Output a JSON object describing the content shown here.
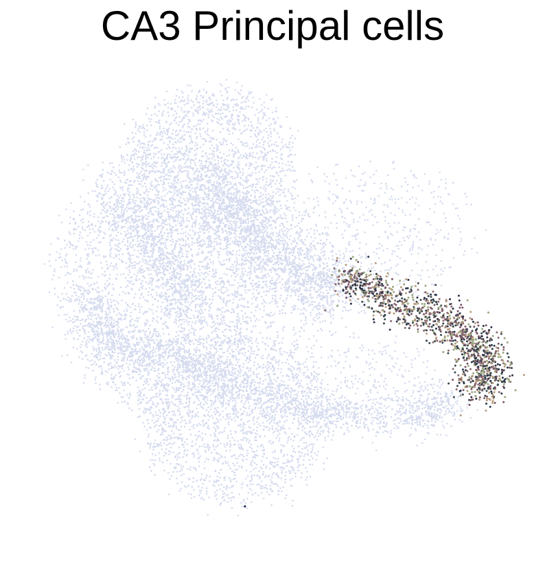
{
  "chart_data": {
    "type": "scatter",
    "title": "CA3 Principal cells",
    "xlabel": "",
    "ylabel": "",
    "axes_visible": false,
    "grid": false,
    "legend": "none",
    "xlim": [
      0,
      1
    ],
    "ylim": [
      0,
      1
    ],
    "background_color": "#d6dcef",
    "highlight_colors": [
      "#2b3447",
      "#3a4a4f",
      "#7a5566",
      "#8b6a70",
      "#9aa77e",
      "#b59b7c",
      "#1f2f55"
    ],
    "background_structure": [
      {
        "name": "cloud-left",
        "cx": 0.27,
        "cy": 0.56,
        "rx": 0.21,
        "ry": 0.27,
        "angle": 0,
        "count": 2600
      },
      {
        "name": "cloud-top",
        "cx": 0.37,
        "cy": 0.8,
        "rx": 0.17,
        "ry": 0.16,
        "angle": 0,
        "count": 1700
      },
      {
        "name": "cloud-bottom",
        "cx": 0.42,
        "cy": 0.27,
        "rx": 0.19,
        "ry": 0.17,
        "angle": 0,
        "count": 1900
      },
      {
        "name": "cloud-center",
        "cx": 0.45,
        "cy": 0.52,
        "rx": 0.18,
        "ry": 0.22,
        "angle": 0,
        "count": 900
      },
      {
        "name": "cloud-right-upper",
        "cx": 0.7,
        "cy": 0.66,
        "rx": 0.2,
        "ry": 0.14,
        "angle": 0,
        "count": 500
      },
      {
        "name": "cloud-right-lower",
        "cx": 0.7,
        "cy": 0.33,
        "rx": 0.14,
        "ry": 0.1,
        "angle": 0,
        "count": 350
      },
      {
        "name": "band-upper-arc",
        "path": [
          [
            0.37,
            0.76
          ],
          [
            0.44,
            0.69
          ],
          [
            0.5,
            0.61
          ],
          [
            0.57,
            0.56
          ],
          [
            0.64,
            0.54
          ]
        ],
        "width": 0.035,
        "count": 1500
      },
      {
        "name": "band-lower-arc",
        "path": [
          [
            0.3,
            0.41
          ],
          [
            0.4,
            0.34
          ],
          [
            0.52,
            0.3
          ],
          [
            0.64,
            0.28
          ],
          [
            0.8,
            0.28
          ],
          [
            0.87,
            0.31
          ]
        ],
        "width": 0.02,
        "count": 1100
      },
      {
        "name": "band-left-loop",
        "path": [
          [
            0.19,
            0.71
          ],
          [
            0.24,
            0.65
          ],
          [
            0.29,
            0.58
          ],
          [
            0.33,
            0.5
          ]
        ],
        "width": 0.025,
        "count": 700
      },
      {
        "name": "band-left-ring",
        "path": [
          [
            0.12,
            0.52
          ],
          [
            0.16,
            0.44
          ],
          [
            0.22,
            0.4
          ],
          [
            0.28,
            0.42
          ]
        ],
        "width": 0.02,
        "count": 600
      }
    ],
    "highlight_structure": {
      "name": "CA3 Principal cells",
      "path": [
        [
          0.64,
          0.56
        ],
        [
          0.7,
          0.54
        ],
        [
          0.77,
          0.51
        ],
        [
          0.84,
          0.48
        ],
        [
          0.89,
          0.44
        ],
        [
          0.93,
          0.4
        ],
        [
          0.93,
          0.36
        ],
        [
          0.91,
          0.33
        ]
      ],
      "width": 0.028,
      "count": 1300,
      "stray": {
        "x": 0.44,
        "y": 0.09
      }
    }
  }
}
